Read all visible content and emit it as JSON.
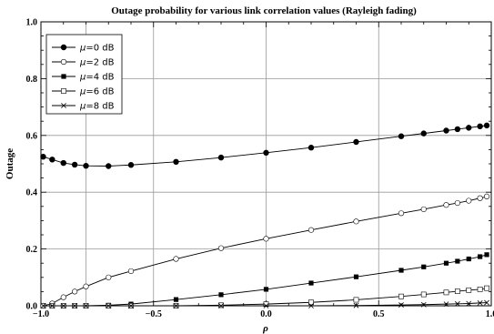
{
  "chart_data": {
    "type": "line",
    "title": "Outage probability for various link correlation values (Rayleigh fading)",
    "xlabel": "ρ",
    "ylabel": "Outage",
    "xlim": [
      -1.0,
      1.0
    ],
    "ylim": [
      0.0,
      1.0
    ],
    "xticks": [
      -1.0,
      -0.5,
      0.0,
      0.5,
      1.0
    ],
    "xtick_labels": [
      "−1.0",
      "−0.5",
      "0.0",
      "0.5",
      "1.0"
    ],
    "yticks": [
      0.0,
      0.2,
      0.4,
      0.6,
      0.8,
      1.0
    ],
    "ytick_labels": [
      "0.0",
      "0.2",
      "0.4",
      "0.6",
      "0.8",
      "1.0"
    ],
    "grid": true,
    "legend_position": "top-left",
    "series": [
      {
        "name": "μ=0 dB",
        "mu_symbol": "μ",
        "mu_rest": "=0 dB",
        "marker": "filled-circle",
        "x": [
          -0.99,
          -0.95,
          -0.9,
          -0.85,
          -0.8,
          -0.7,
          -0.6,
          -0.4,
          -0.2,
          0.0,
          0.2,
          0.4,
          0.6,
          0.7,
          0.8,
          0.85,
          0.9,
          0.95,
          0.98
        ],
        "y": [
          0.525,
          0.515,
          0.503,
          0.497,
          0.493,
          0.492,
          0.496,
          0.507,
          0.522,
          0.539,
          0.557,
          0.577,
          0.597,
          0.607,
          0.617,
          0.622,
          0.627,
          0.632,
          0.635
        ]
      },
      {
        "name": "μ=2 dB",
        "mu_symbol": "μ",
        "mu_rest": "=2 dB",
        "marker": "open-circle",
        "x": [
          -0.99,
          -0.95,
          -0.9,
          -0.85,
          -0.8,
          -0.7,
          -0.6,
          -0.4,
          -0.2,
          0.0,
          0.2,
          0.4,
          0.6,
          0.7,
          0.8,
          0.85,
          0.9,
          0.95,
          0.98
        ],
        "y": [
          0.0,
          0.008,
          0.03,
          0.05,
          0.068,
          0.1,
          0.122,
          0.165,
          0.203,
          0.236,
          0.267,
          0.297,
          0.326,
          0.34,
          0.355,
          0.362,
          0.37,
          0.379,
          0.385
        ]
      },
      {
        "name": "μ=4 dB",
        "mu_symbol": "μ",
        "mu_rest": "=4 dB",
        "marker": "filled-square",
        "x": [
          -0.99,
          -0.95,
          -0.9,
          -0.85,
          -0.8,
          -0.7,
          -0.6,
          -0.4,
          -0.2,
          0.0,
          0.2,
          0.4,
          0.6,
          0.7,
          0.8,
          0.85,
          0.9,
          0.95,
          0.98
        ],
        "y": [
          0.0,
          0.0,
          0.0,
          0.0,
          0.0,
          0.002,
          0.006,
          0.022,
          0.039,
          0.058,
          0.08,
          0.102,
          0.125,
          0.137,
          0.15,
          0.157,
          0.165,
          0.173,
          0.18
        ]
      },
      {
        "name": "μ=6 dB",
        "mu_symbol": "μ",
        "mu_rest": "=6 dB",
        "marker": "open-square",
        "x": [
          -0.99,
          -0.95,
          -0.9,
          -0.85,
          -0.8,
          -0.7,
          -0.6,
          -0.4,
          -0.2,
          0.0,
          0.2,
          0.4,
          0.6,
          0.7,
          0.8,
          0.85,
          0.9,
          0.95,
          0.98
        ],
        "y": [
          0.0,
          0.0,
          0.0,
          0.0,
          0.0,
          0.0,
          0.0,
          0.0,
          0.002,
          0.006,
          0.012,
          0.021,
          0.033,
          0.04,
          0.047,
          0.051,
          0.055,
          0.058,
          0.062
        ]
      },
      {
        "name": "μ=8 dB",
        "mu_symbol": "μ",
        "mu_rest": "=8 dB",
        "marker": "cross",
        "x": [
          -0.99,
          -0.95,
          -0.9,
          -0.85,
          -0.8,
          -0.7,
          -0.6,
          -0.4,
          -0.2,
          0.0,
          0.2,
          0.4,
          0.6,
          0.7,
          0.8,
          0.85,
          0.9,
          0.95,
          0.98
        ],
        "y": [
          0.0,
          0.0,
          0.0,
          0.0,
          0.0,
          0.0,
          0.0,
          0.0,
          0.0,
          0.0,
          0.0,
          0.001,
          0.003,
          0.004,
          0.006,
          0.007,
          0.008,
          0.01,
          0.011
        ]
      }
    ]
  }
}
